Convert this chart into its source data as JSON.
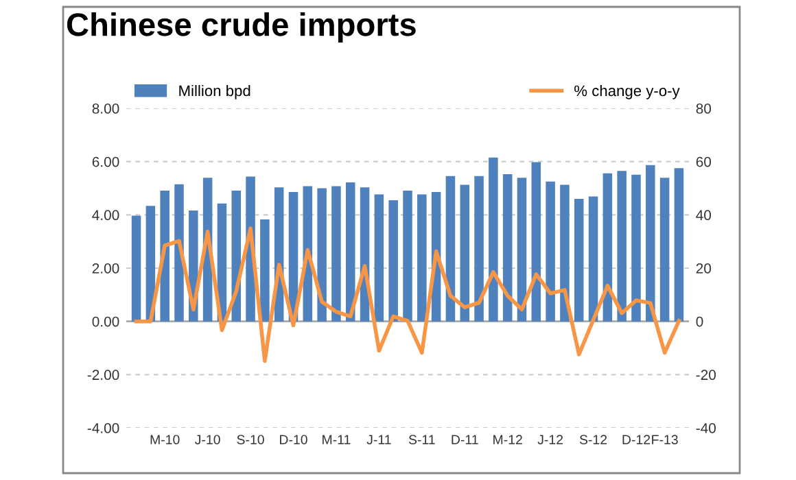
{
  "chart_data": {
    "type": "bar",
    "title": "Chinese crude imports",
    "categories": [
      null,
      null,
      "M-10",
      null,
      null,
      "J-10",
      null,
      null,
      "S-10",
      null,
      null,
      "D-10",
      null,
      null,
      "M-11",
      null,
      null,
      "J-11",
      null,
      null,
      "S-11",
      null,
      null,
      "D-11",
      null,
      null,
      "M-12",
      null,
      null,
      "J-12",
      null,
      null,
      "S-12",
      null,
      null,
      "D-12",
      null,
      "F-13",
      null
    ],
    "series": [
      {
        "name": "Million bpd",
        "color": "#4f81bd",
        "values": [
          3.97,
          4.34,
          4.91,
          5.15,
          4.16,
          5.39,
          4.43,
          4.91,
          5.44,
          3.83,
          5.03,
          4.86,
          5.08,
          5.0,
          5.08,
          5.22,
          5.03,
          4.77,
          4.55,
          4.91,
          4.77,
          4.86,
          5.46,
          5.13,
          5.46,
          6.15,
          5.53,
          5.39,
          5.98,
          5.25,
          5.13,
          4.6,
          4.69,
          5.56,
          5.65,
          5.51,
          5.87,
          5.39,
          5.75
        ]
      },
      {
        "name": "% change y-o-y",
        "type": "line",
        "axis": "y2",
        "color": "#f79646",
        "values": [
          0,
          0,
          28.5,
          30.2,
          4.5,
          33.7,
          -3.3,
          11.3,
          34.9,
          -14.9,
          21.3,
          -1.5,
          26.8,
          7.4,
          3.6,
          1.9,
          20.8,
          -11.0,
          1.9,
          0.2,
          -11.8,
          26.3,
          9.6,
          5.3,
          7.0,
          18.5,
          9.6,
          4.5,
          17.7,
          10.5,
          11.8,
          -12.4,
          0.5,
          13.4,
          3.1,
          7.9,
          6.9,
          -11.8,
          0.2
        ]
      }
    ],
    "ylim": [
      -4,
      8
    ],
    "yticks": [
      {
        "value": 8,
        "label": "8.00"
      },
      {
        "value": 6,
        "label": "6.00"
      },
      {
        "value": 4,
        "label": "4.00"
      },
      {
        "value": 2,
        "label": "2.00"
      },
      {
        "value": 0,
        "label": "0.00"
      },
      {
        "value": -2,
        "label": "-2.00"
      },
      {
        "value": -4,
        "label": "-4.00"
      }
    ],
    "y2lim": [
      -40,
      80
    ],
    "y2ticks": [
      80,
      60,
      40,
      20,
      0,
      {
        "value": -20,
        "label": "-20"
      },
      {
        "value": -40,
        "label": "-40"
      }
    ],
    "grid": "y",
    "legend": "top",
    "marker": "none",
    "line_style": "solid"
  }
}
